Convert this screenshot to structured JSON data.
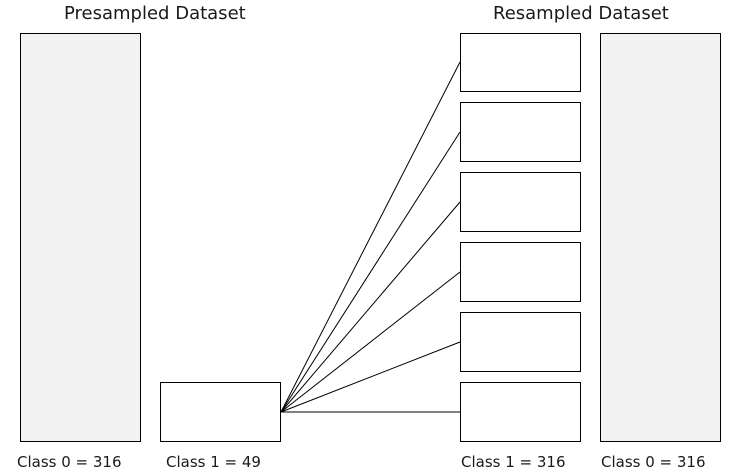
{
  "presampled": {
    "title": "Presampled Dataset",
    "class0_label": "Class 0 = 316",
    "class1_label": "Class 1 = 49"
  },
  "resampled": {
    "title": "Resampled Dataset",
    "class1_label": "Class 1 = 316",
    "class0_label": "Class 0 = 316",
    "copies_count": 6
  },
  "colors": {
    "class0_fill": "#f2f2f2",
    "class1_fill": "#ffffff",
    "stroke": "#000000"
  }
}
